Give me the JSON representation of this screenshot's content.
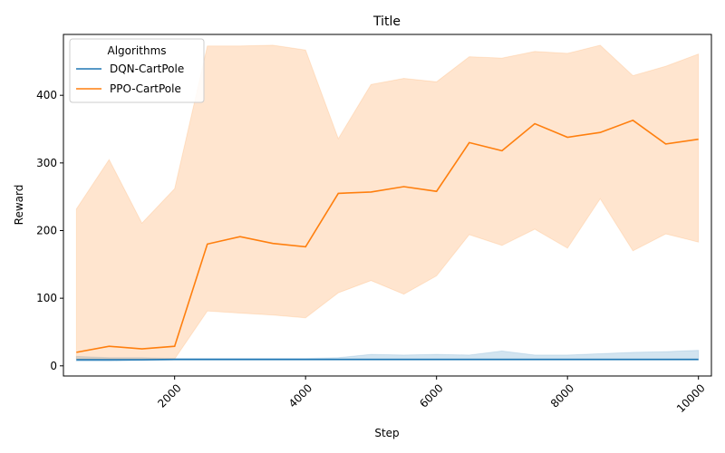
{
  "chart_data": {
    "type": "line",
    "title": "Title",
    "xlabel": "Step",
    "ylabel": "Reward",
    "xlim": [
      500,
      10000
    ],
    "ylim": [
      -15,
      490
    ],
    "xticks": [
      2000,
      4000,
      6000,
      8000,
      10000
    ],
    "yticks": [
      0,
      100,
      200,
      300,
      400
    ],
    "grid": false,
    "legend": {
      "title": "Algorithms",
      "placement": "top-left"
    },
    "x": [
      500,
      1000,
      1500,
      2000,
      2500,
      3000,
      3500,
      4000,
      4500,
      5000,
      5500,
      6000,
      6500,
      7000,
      7500,
      8000,
      8500,
      9000,
      9500,
      10000
    ],
    "series": [
      {
        "name": "DQN-CartPole",
        "color": "#1f77b4",
        "values": [
          9,
          9,
          9,
          9.5,
          9.5,
          9.5,
          9.5,
          9.5,
          9.5,
          9.5,
          9.5,
          9.5,
          9.5,
          9.5,
          9.5,
          9.5,
          9.5,
          9.5,
          9.5,
          9.5
        ],
        "band_low": [
          7,
          7,
          8,
          8.5,
          8.5,
          8.5,
          8.5,
          8.5,
          8.5,
          8.5,
          8.5,
          8.5,
          8.5,
          8.5,
          8.5,
          8.5,
          8.5,
          8.5,
          8.5,
          8.5
        ],
        "band_high": [
          14,
          12,
          12,
          11,
          11,
          11,
          11,
          11,
          12,
          17,
          16,
          17,
          16,
          22,
          16,
          16,
          18,
          20,
          21,
          23
        ]
      },
      {
        "name": "PPO-CartPole",
        "color": "#ff7f0e",
        "values": [
          20,
          29,
          25,
          29,
          180,
          191,
          181,
          176,
          255,
          257,
          265,
          258,
          330,
          318,
          358,
          338,
          345,
          363,
          328,
          335
        ],
        "band_low": [
          10,
          10,
          10,
          10,
          81,
          78,
          75,
          71,
          108,
          126,
          106,
          133,
          194,
          178,
          202,
          174,
          247,
          170,
          195,
          183
        ],
        "band_high": [
          232,
          305,
          211,
          262,
          473,
          473,
          474,
          467,
          336,
          416,
          425,
          420,
          457,
          455,
          465,
          462,
          474,
          429,
          443,
          461
        ]
      }
    ]
  }
}
